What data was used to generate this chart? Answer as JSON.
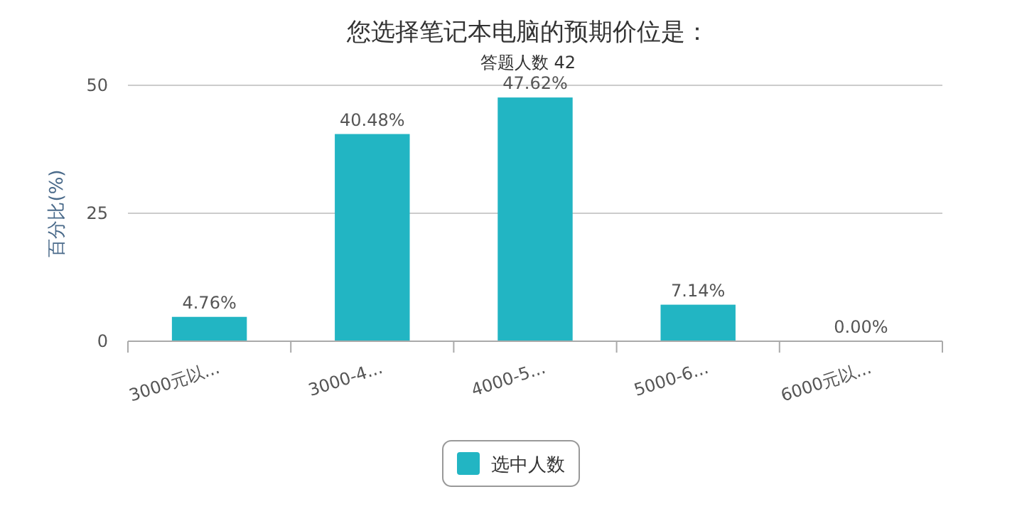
{
  "chart_data": {
    "type": "bar",
    "title": "您选择笔记本电脑的预期价位是：",
    "subtitle": "答题人数 42",
    "ylabel": "百分比(%)",
    "categories": [
      "3000元以...",
      "3000-4...",
      "4000-5...",
      "5000-6...",
      "6000元以..."
    ],
    "series": [
      {
        "name": "选中人数",
        "color": "#22b5c3",
        "values": [
          4.76,
          40.48,
          47.62,
          7.14,
          0
        ],
        "value_labels": [
          "4.76%",
          "40.48%",
          "47.62%",
          "7.14%",
          "0.00%"
        ]
      }
    ],
    "ylim": [
      0,
      50
    ],
    "yticks": [
      0,
      25,
      50
    ],
    "grid": "y",
    "legend": "bottom"
  }
}
